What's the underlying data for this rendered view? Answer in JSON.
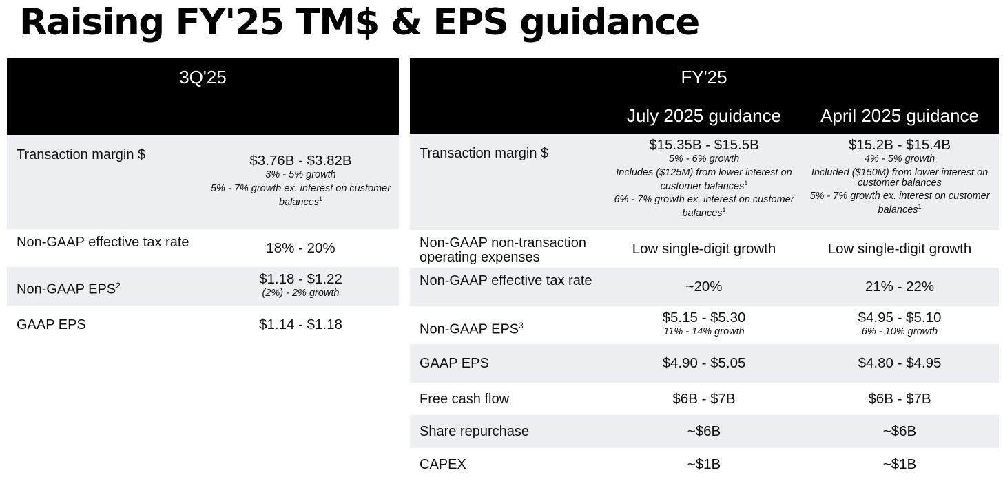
{
  "title": "Raising FY'25 TM$ & EPS guidance",
  "q3": {
    "header": "3Q'25",
    "rows": [
      {
        "label": "Transaction margin $",
        "value": "$3.76B - $3.82B",
        "sub1": "3% - 5% growth",
        "sub2": "5% - 7% growth ex. interest on customer balances",
        "sup2": "1"
      },
      {
        "label": "Non-GAAP effective tax rate",
        "value": "18% - 20%"
      },
      {
        "label": "Non-GAAP EPS",
        "label_sup": "2",
        "value": "$1.18 - $1.22",
        "sub1": "(2%) - 2% growth"
      },
      {
        "label": "GAAP EPS",
        "value": "$1.14 - $1.18"
      }
    ]
  },
  "fy": {
    "header": "FY'25",
    "col_july": "July 2025 guidance",
    "col_april": "April 2025 guidance",
    "rows": [
      {
        "label": "Transaction margin $",
        "july": {
          "value": "$15.35B - $15.5B",
          "sub1": "5% - 6% growth",
          "sub2": "Includes ($125M) from lower interest on customer balances",
          "sup2": "1",
          "sub3": "6% - 7% growth ex. interest on customer balances",
          "sup3": "1"
        },
        "april": {
          "value": "$15.2B - $15.4B",
          "sub1": "4% - 5% growth",
          "sub2": "Included ($150M) from lower interest on customer balances",
          "sub3": "5% - 7% growth ex. interest on customer balances",
          "sup3": "1"
        }
      },
      {
        "label": "Non-GAAP non-transaction operating expenses",
        "july": "Low single-digit growth",
        "april": "Low single-digit growth"
      },
      {
        "label": "Non-GAAP effective tax rate",
        "july": "~20%",
        "april": "21% - 22%"
      },
      {
        "label": "Non-GAAP EPS",
        "label_sup": "3",
        "july": {
          "value": "$5.15 - $5.30",
          "sub1": "11% - 14% growth"
        },
        "april": {
          "value": "$4.95 - $5.10",
          "sub1": "6% - 10% growth"
        }
      },
      {
        "label": "GAAP EPS",
        "july": "$4.90 - $5.05",
        "april": "$4.80 - $4.95"
      },
      {
        "label": "Free cash flow",
        "july": "$6B - $7B",
        "april": "$6B - $7B"
      },
      {
        "label": "Share repurchase",
        "july": "~$6B",
        "april": "~$6B"
      },
      {
        "label": "CAPEX",
        "july": "~$1B",
        "april": "~$1B"
      }
    ]
  },
  "colors": {
    "header_bg": "#000000",
    "header_text": "#ffffff",
    "shade": "#eceef1",
    "text": "#111111"
  }
}
